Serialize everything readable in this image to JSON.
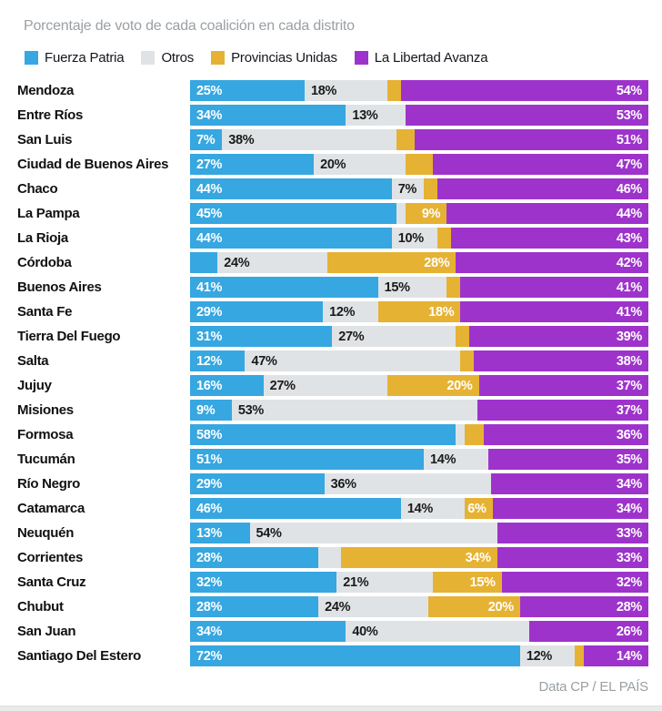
{
  "title": "Porcentaje de voto de cada coalición en cada distrito",
  "legend": [
    {
      "label": "Fuerza Patria",
      "color": "#36a7e0",
      "text_color": "#ffffff",
      "align": "left"
    },
    {
      "label": "Otros",
      "color": "#e0e3e5",
      "text_color": "#1a1a1a",
      "align": "left"
    },
    {
      "label": "Provincias Unidas",
      "color": "#e6b233",
      "text_color": "#ffffff",
      "align": "right"
    },
    {
      "label": "La Libertad Avanza",
      "color": "#9e33cc",
      "text_color": "#ffffff",
      "align": "right"
    }
  ],
  "footer": "Data CP / EL PAÍS",
  "chart_data": {
    "type": "bar",
    "subtype": "stacked-horizontal",
    "unit": "%",
    "title": "Porcentaje de voto de cada coalición en cada distrito",
    "series": [
      "Fuerza Patria",
      "Otros",
      "Provincias Unidas",
      "La Libertad Avanza"
    ],
    "note": "values are percent of vote per district; empty label = segment shown without a printed value",
    "rows": [
      {
        "district": "Mendoza",
        "values": [
          25,
          18,
          3,
          54
        ],
        "labels": [
          "25%",
          "18%",
          "",
          "54%"
        ]
      },
      {
        "district": "Entre Ríos",
        "values": [
          34,
          13,
          0,
          53
        ],
        "labels": [
          "34%",
          "13%",
          "",
          "53%"
        ]
      },
      {
        "district": "San Luis",
        "values": [
          7,
          38,
          4,
          51
        ],
        "labels": [
          "7%",
          "38%",
          "",
          "51%"
        ]
      },
      {
        "district": "Ciudad de Buenos Aires",
        "values": [
          27,
          20,
          6,
          47
        ],
        "labels": [
          "27%",
          "20%",
          "",
          "47%"
        ]
      },
      {
        "district": "Chaco",
        "values": [
          44,
          7,
          3,
          46
        ],
        "labels": [
          "44%",
          "7%",
          "",
          "46%"
        ]
      },
      {
        "district": "La Pampa",
        "values": [
          45,
          2,
          9,
          44
        ],
        "labels": [
          "45%",
          "",
          "9%",
          "44%"
        ]
      },
      {
        "district": "La Rioja",
        "values": [
          44,
          10,
          3,
          43
        ],
        "labels": [
          "44%",
          "10%",
          "",
          "43%"
        ]
      },
      {
        "district": "Córdoba",
        "values": [
          6,
          24,
          28,
          42
        ],
        "labels": [
          "",
          "24%",
          "28%",
          "42%"
        ]
      },
      {
        "district": "Buenos Aires",
        "values": [
          41,
          15,
          3,
          41
        ],
        "labels": [
          "41%",
          "15%",
          "",
          "41%"
        ]
      },
      {
        "district": "Santa Fe",
        "values": [
          29,
          12,
          18,
          41
        ],
        "labels": [
          "29%",
          "12%",
          "18%",
          "41%"
        ]
      },
      {
        "district": "Tierra Del Fuego",
        "values": [
          31,
          27,
          3,
          39
        ],
        "labels": [
          "31%",
          "27%",
          "",
          "39%"
        ]
      },
      {
        "district": "Salta",
        "values": [
          12,
          47,
          3,
          38
        ],
        "labels": [
          "12%",
          "47%",
          "",
          "38%"
        ]
      },
      {
        "district": "Jujuy",
        "values": [
          16,
          27,
          20,
          37
        ],
        "labels": [
          "16%",
          "27%",
          "20%",
          "37%"
        ]
      },
      {
        "district": "Misiones",
        "values": [
          9,
          53,
          0,
          37
        ],
        "labels": [
          "9%",
          "53%",
          "",
          "37%"
        ]
      },
      {
        "district": "Formosa",
        "values": [
          58,
          2,
          4,
          36
        ],
        "labels": [
          "58%",
          "",
          "",
          "36%"
        ]
      },
      {
        "district": "Tucumán",
        "values": [
          51,
          14,
          0,
          35
        ],
        "labels": [
          "51%",
          "14%",
          "",
          "35%"
        ]
      },
      {
        "district": "Río Negro",
        "values": [
          29,
          36,
          0,
          34
        ],
        "labels": [
          "29%",
          "36%",
          "",
          "34%"
        ]
      },
      {
        "district": "Catamarca",
        "values": [
          46,
          14,
          6,
          34
        ],
        "labels": [
          "46%",
          "14%",
          "6%",
          "34%"
        ]
      },
      {
        "district": "Neuquén",
        "values": [
          13,
          54,
          0,
          33
        ],
        "labels": [
          "13%",
          "54%",
          "",
          "33%"
        ]
      },
      {
        "district": "Corrientes",
        "values": [
          28,
          5,
          34,
          33
        ],
        "labels": [
          "28%",
          "",
          "34%",
          "33%"
        ]
      },
      {
        "district": "Santa Cruz",
        "values": [
          32,
          21,
          15,
          32
        ],
        "labels": [
          "32%",
          "21%",
          "15%",
          "32%"
        ]
      },
      {
        "district": "Chubut",
        "values": [
          28,
          24,
          20,
          28
        ],
        "labels": [
          "28%",
          "24%",
          "20%",
          "28%"
        ]
      },
      {
        "district": "San Juan",
        "values": [
          34,
          40,
          0,
          26
        ],
        "labels": [
          "34%",
          "40%",
          "",
          "26%"
        ]
      },
      {
        "district": "Santiago Del Estero",
        "values": [
          72,
          12,
          2,
          14
        ],
        "labels": [
          "72%",
          "12%",
          "",
          "14%"
        ]
      }
    ]
  }
}
